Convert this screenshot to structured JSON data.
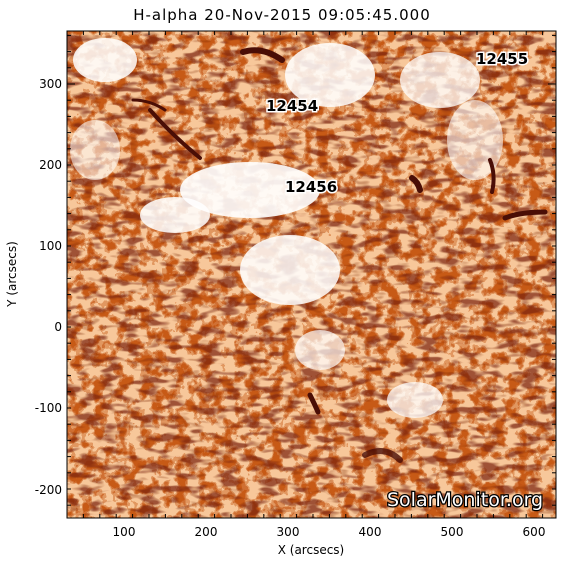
{
  "title": "H-alpha 20-Nov-2015 09:05:45.000",
  "axes": {
    "x_label": "X (arcsecs)",
    "y_label": "Y (arcsecs)",
    "x_ticks": [
      "100",
      "200",
      "300",
      "400",
      "500",
      "600"
    ],
    "y_ticks": [
      "300",
      "200",
      "100",
      "0",
      "-100",
      "-200"
    ]
  },
  "regions": [
    {
      "label": "12455"
    },
    {
      "label": "12454"
    },
    {
      "label": "12456"
    }
  ],
  "watermark": "SolarMonitor.org",
  "colors": {
    "background": "#ffffff",
    "sun_light": "#f4a260",
    "sun_mid": "#d96a1e",
    "sun_dark": "#8a2d10",
    "sun_darkest": "#4a0e06"
  }
}
